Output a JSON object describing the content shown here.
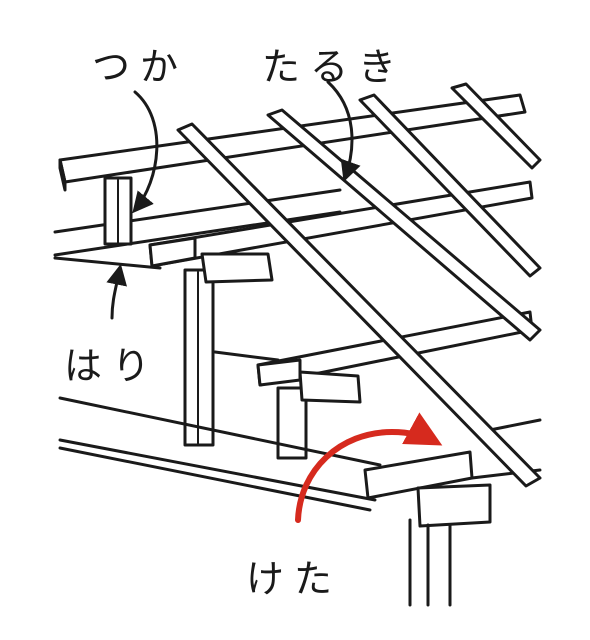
{
  "labels": {
    "tsuka": "つか",
    "taruki": "たるき",
    "hari": "はり",
    "keta": "けた"
  },
  "colors": {
    "ink": "#1a1a1a",
    "highlight_arrow": "#d62a1e",
    "background": "#ffffff"
  }
}
